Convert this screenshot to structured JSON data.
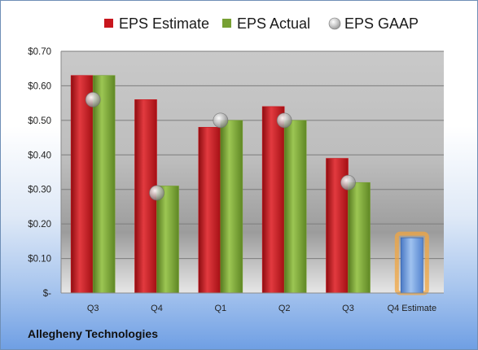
{
  "company": "Allegheny Technologies",
  "colors": {
    "estimate": "#c8161d",
    "actual": "#77a033",
    "gaap": "#b8b8b8",
    "forecast": "#6a98dc",
    "forecast_glow": "#f2a640"
  },
  "chart_data": {
    "type": "bar",
    "categories": [
      "Q3",
      "Q4",
      "Q1",
      "Q2",
      "Q3",
      "Q4 Estimate"
    ],
    "series": [
      {
        "name": "EPS Estimate",
        "values": [
          0.63,
          0.56,
          0.48,
          0.54,
          0.39,
          null
        ]
      },
      {
        "name": "EPS Actual",
        "values": [
          0.63,
          0.31,
          0.5,
          0.5,
          0.32,
          null
        ]
      },
      {
        "name": "EPS GAAP",
        "type": "scatter",
        "values": [
          0.56,
          0.29,
          0.5,
          0.5,
          0.32,
          null
        ]
      }
    ],
    "forecast": {
      "category": "Q4 Estimate",
      "value": 0.16
    },
    "ylim": [
      0,
      0.7
    ],
    "yticks": [
      0,
      0.1,
      0.2,
      0.3,
      0.4,
      0.5,
      0.6,
      0.7
    ],
    "ytick_labels": [
      "$-",
      "$0.10",
      "$0.20",
      "$0.30",
      "$0.40",
      "$0.50",
      "$0.60",
      "$0.70"
    ],
    "grid": true,
    "legend": "top"
  }
}
